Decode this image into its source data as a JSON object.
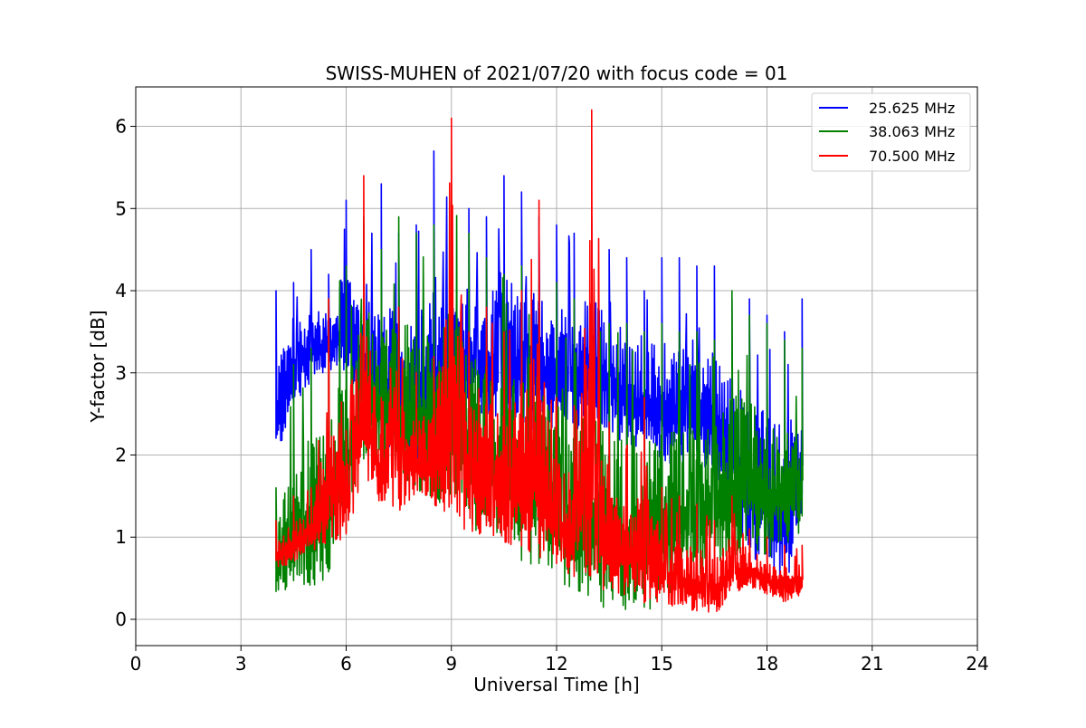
{
  "chart_data": {
    "type": "line",
    "title": "SWISS-MUHEN of 2021/07/20 with focus code = 01",
    "xlabel": "Universal Time [h]",
    "ylabel": "Y-factor [dB]",
    "xlim": [
      0,
      24
    ],
    "ylim": [
      -0.32,
      6.48
    ],
    "xticks": [
      0,
      3,
      6,
      9,
      12,
      15,
      18,
      21,
      24
    ],
    "yticks": [
      0,
      1,
      2,
      3,
      4,
      5,
      6
    ],
    "grid": true,
    "legend_position": "top-right",
    "series": [
      {
        "name": "25.625 MHz",
        "color": "#0000ff",
        "x": [
          4.0,
          4.5,
          5.0,
          5.5,
          6.0,
          6.5,
          7.0,
          7.5,
          8.0,
          8.5,
          9.0,
          9.5,
          10.0,
          10.5,
          11.0,
          11.5,
          12.0,
          12.5,
          13.0,
          13.5,
          14.0,
          14.5,
          15.0,
          15.5,
          16.0,
          16.5,
          17.0,
          17.5,
          18.0,
          18.5,
          19.0
        ],
        "low": [
          1.9,
          2.6,
          2.9,
          3.0,
          3.0,
          2.6,
          2.1,
          2.0,
          1.7,
          1.7,
          2.4,
          2.5,
          2.5,
          2.4,
          2.3,
          2.3,
          2.3,
          2.3,
          2.4,
          2.3,
          2.1,
          2.1,
          1.9,
          1.9,
          1.9,
          1.8,
          1.3,
          0.8,
          0.6,
          0.4,
          1.0
        ],
        "high": [
          4.0,
          4.1,
          4.5,
          4.2,
          5.1,
          4.8,
          5.3,
          4.7,
          4.8,
          5.7,
          5.0,
          5.0,
          4.9,
          5.4,
          5.2,
          4.9,
          4.8,
          4.7,
          4.9,
          4.5,
          4.4,
          4.0,
          4.4,
          4.4,
          4.3,
          4.3,
          3.9,
          3.9,
          3.7,
          3.5,
          3.9
        ]
      },
      {
        "name": "38.063 MHz",
        "color": "#008000",
        "x": [
          4.0,
          4.5,
          5.0,
          5.5,
          6.0,
          6.5,
          7.0,
          7.5,
          8.0,
          8.5,
          9.0,
          9.5,
          10.0,
          10.5,
          11.0,
          11.5,
          12.0,
          12.5,
          13.0,
          13.5,
          14.0,
          14.5,
          15.0,
          15.5,
          16.0,
          16.5,
          17.0,
          17.5,
          18.0,
          18.5,
          19.0
        ],
        "low": [
          0.3,
          0.4,
          0.4,
          0.5,
          1.0,
          1.8,
          1.9,
          1.7,
          1.6,
          1.4,
          1.3,
          1.1,
          1.0,
          0.8,
          0.7,
          0.6,
          0.5,
          0.3,
          0.2,
          0.1,
          0.1,
          0.05,
          0.2,
          0.4,
          0.5,
          0.6,
          0.7,
          0.9,
          0.7,
          0.9,
          1.0
        ],
        "high": [
          1.6,
          3.1,
          3.3,
          3.9,
          4.3,
          4.9,
          4.5,
          4.9,
          4.7,
          4.8,
          5.3,
          4.7,
          4.4,
          4.2,
          4.3,
          4.1,
          4.1,
          3.9,
          3.9,
          3.6,
          3.6,
          3.5,
          3.6,
          3.5,
          3.5,
          3.4,
          4.0,
          3.7,
          3.6,
          3.4,
          3.3
        ]
      },
      {
        "name": "70.500 MHz",
        "color": "#ff0000",
        "x": [
          4.0,
          4.5,
          5.0,
          5.5,
          6.0,
          6.5,
          7.0,
          7.5,
          8.0,
          8.5,
          9.0,
          9.5,
          10.0,
          10.5,
          11.0,
          11.5,
          12.0,
          12.5,
          13.0,
          13.5,
          14.0,
          14.5,
          15.0,
          15.5,
          16.0,
          16.5,
          17.0,
          17.5,
          18.0,
          18.5,
          19.0
        ],
        "low": [
          0.6,
          0.7,
          0.8,
          0.9,
          1.0,
          1.7,
          1.4,
          1.3,
          1.5,
          1.4,
          1.2,
          1.0,
          1.0,
          0.9,
          0.8,
          0.7,
          0.6,
          0.5,
          0.4,
          0.3,
          0.3,
          0.2,
          0.2,
          0.1,
          0.1,
          0.0,
          0.3,
          0.4,
          0.3,
          0.2,
          0.3
        ],
        "high": [
          1.2,
          1.5,
          1.6,
          3.9,
          2.3,
          5.4,
          2.7,
          3.8,
          3.0,
          3.2,
          6.1,
          3.5,
          3.8,
          3.5,
          4.0,
          5.1,
          2.7,
          2.6,
          6.2,
          2.4,
          2.1,
          2.7,
          1.6,
          1.5,
          1.4,
          1.2,
          1.5,
          1.1,
          1.0,
          0.9,
          0.9
        ]
      }
    ]
  }
}
